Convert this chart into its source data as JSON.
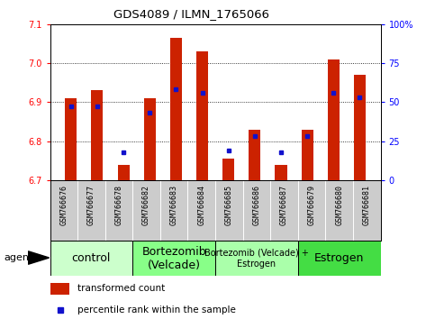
{
  "title": "GDS4089 / ILMN_1765066",
  "samples": [
    "GSM766676",
    "GSM766677",
    "GSM766678",
    "GSM766682",
    "GSM766683",
    "GSM766684",
    "GSM766685",
    "GSM766686",
    "GSM766687",
    "GSM766679",
    "GSM766680",
    "GSM766681"
  ],
  "red_values": [
    6.91,
    6.93,
    6.74,
    6.91,
    7.065,
    7.03,
    6.755,
    6.83,
    6.74,
    6.83,
    7.01,
    6.97
  ],
  "blue_percentiles": [
    47,
    47,
    18,
    43,
    58,
    56,
    19,
    28,
    18,
    28,
    56,
    53
  ],
  "ylim_left": [
    6.7,
    7.1
  ],
  "ylim_right": [
    0,
    100
  ],
  "yticks_left": [
    6.7,
    6.8,
    6.9,
    7.0,
    7.1
  ],
  "yticks_right": [
    0,
    25,
    50,
    75,
    100
  ],
  "ytick_labels_right": [
    "0",
    "25",
    "50",
    "75",
    "100%"
  ],
  "groups": [
    {
      "label": "control",
      "start": 0,
      "end": 2,
      "color": "#ccffcc",
      "fontsize": 9
    },
    {
      "label": "Bortezomib\n(Velcade)",
      "start": 3,
      "end": 5,
      "color": "#88ff88",
      "fontsize": 9
    },
    {
      "label": "Bortezomib (Velcade) +\nEstrogen",
      "start": 6,
      "end": 8,
      "color": "#aaffaa",
      "fontsize": 7
    },
    {
      "label": "Estrogen",
      "start": 9,
      "end": 11,
      "color": "#44dd44",
      "fontsize": 9
    }
  ],
  "bar_color": "#cc2200",
  "dot_color": "#1111cc",
  "bar_width": 0.45,
  "base_value": 6.7,
  "bg_color": "#cccccc",
  "plot_bg": "#ffffff"
}
